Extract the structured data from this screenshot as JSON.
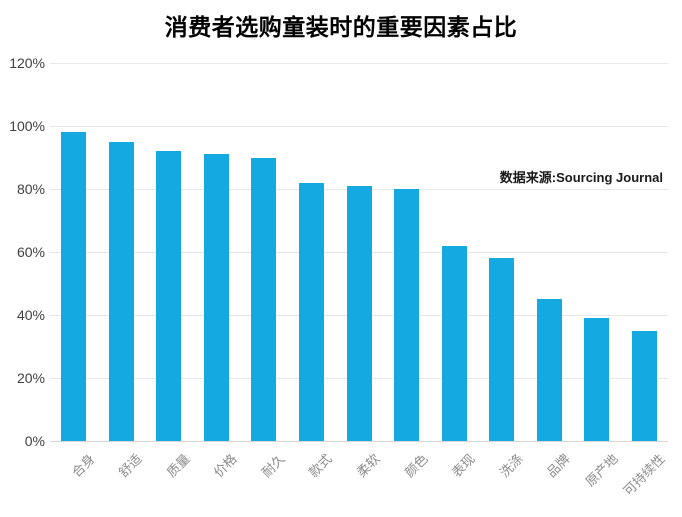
{
  "header": {
    "title": "消费者选购童装时的重要因素占比"
  },
  "source": {
    "label": "数据来源:Sourcing Journal"
  },
  "colors": {
    "bar": "#14a9e1",
    "gridline": "#e7e7e7",
    "baseline": "#d6d6d6",
    "y_label": "#404040",
    "x_label": "#8c8c8c",
    "title": "#000000",
    "background": "#ffffff"
  },
  "chart_data": {
    "type": "bar",
    "title": "消费者选购童装时的重要因素占比",
    "categories": [
      "合身",
      "舒适",
      "质量",
      "价格",
      "耐久",
      "款式",
      "柔软",
      "颜色",
      "表现",
      "洗涤",
      "品牌",
      "原产地",
      "可持续性"
    ],
    "values": [
      98,
      95,
      92,
      91,
      90,
      82,
      81,
      80,
      62,
      58,
      45,
      39,
      35
    ],
    "xlabel": "",
    "ylabel": "",
    "ylim": [
      0,
      120
    ],
    "yticks": [
      0,
      20,
      40,
      60,
      80,
      100,
      120
    ],
    "ytick_labels": [
      "0%",
      "20%",
      "40%",
      "60%",
      "80%",
      "100%",
      "120%"
    ],
    "grid": true,
    "legend": false,
    "annotation": "数据来源:Sourcing Journal",
    "bar_color": "#14a9e1"
  }
}
